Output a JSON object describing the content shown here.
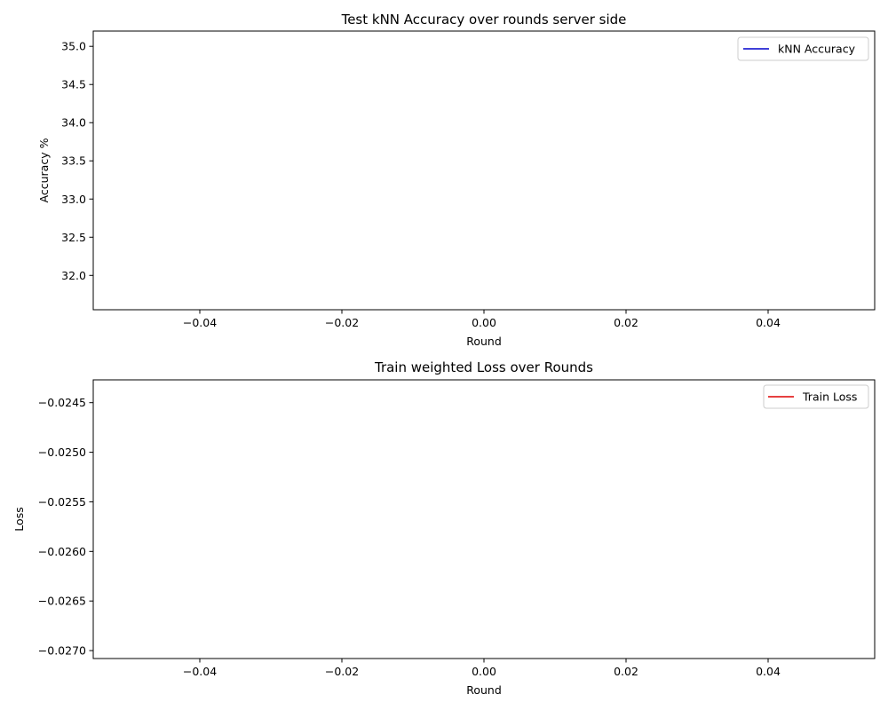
{
  "chart_data": [
    {
      "type": "line",
      "title": "Test kNN Accuracy over rounds server side",
      "xlabel": "Round",
      "ylabel": "Accuracy %",
      "xlim": [
        -0.055,
        0.055
      ],
      "ylim": [
        31.55,
        35.2
      ],
      "xticks": [
        -0.04,
        -0.02,
        0.0,
        0.02,
        0.04
      ],
      "xtick_labels": [
        "−0.04",
        "−0.02",
        "0.00",
        "0.02",
        "0.04"
      ],
      "yticks": [
        32.0,
        32.5,
        33.0,
        33.5,
        34.0,
        34.5,
        35.0
      ],
      "ytick_labels": [
        "32.0",
        "32.5",
        "33.0",
        "33.5",
        "34.0",
        "34.5",
        "35.0"
      ],
      "legend_position": "top-right",
      "grid": false,
      "series": [
        {
          "name": "kNN Accuracy",
          "color": "#0000cc",
          "x": [],
          "y": []
        }
      ]
    },
    {
      "type": "line",
      "title": "Train weighted Loss over Rounds",
      "xlabel": "Round",
      "ylabel": "Loss",
      "xlim": [
        -0.055,
        0.055
      ],
      "ylim": [
        -0.02708,
        -0.02427
      ],
      "xticks": [
        -0.04,
        -0.02,
        0.0,
        0.02,
        0.04
      ],
      "xtick_labels": [
        "−0.04",
        "−0.02",
        "0.00",
        "0.02",
        "0.04"
      ],
      "yticks": [
        -0.0245,
        -0.025,
        -0.0255,
        -0.026,
        -0.0265,
        -0.027
      ],
      "ytick_labels": [
        "−0.0245",
        "−0.0250",
        "−0.0255",
        "−0.0260",
        "−0.0265",
        "−0.0270"
      ],
      "legend_position": "top-right",
      "grid": false,
      "series": [
        {
          "name": "Train Loss",
          "color": "#dd0000",
          "x": [],
          "y": []
        }
      ]
    }
  ]
}
